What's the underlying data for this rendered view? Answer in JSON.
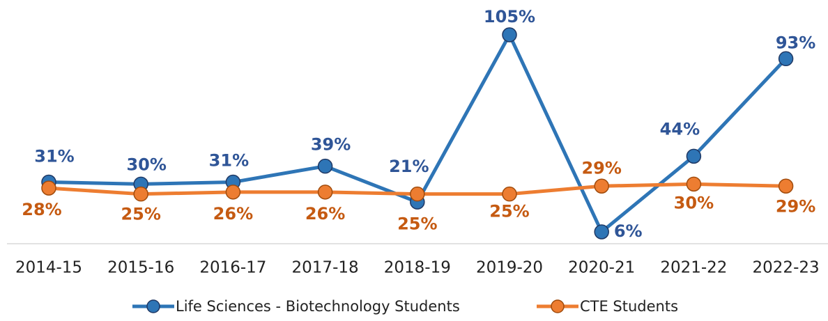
{
  "chart_data": {
    "type": "line",
    "categories": [
      "2014-15",
      "2015-16",
      "2016-17",
      "2017-18",
      "2018-19",
      "2019-20",
      "2020-21",
      "2021-22",
      "2022-23"
    ],
    "series": [
      {
        "name": "Life Sciences - Biotechnology Students",
        "color": "#2e75b6",
        "label_color": "#2f5597",
        "values": [
          31,
          30,
          31,
          39,
          21,
          105,
          6,
          44,
          93
        ],
        "value_labels": [
          "31%",
          "30%",
          "31%",
          "39%",
          "21%",
          "105%",
          "6%",
          "44%",
          "93%"
        ]
      },
      {
        "name": "CTE Students",
        "color": "#ed7d31",
        "label_color": "#c55a11",
        "values": [
          28,
          25,
          26,
          26,
          25,
          25,
          29,
          30,
          29
        ],
        "value_labels": [
          "28%",
          "25%",
          "26%",
          "26%",
          "25%",
          "25%",
          "29%",
          "30%",
          "29%"
        ]
      }
    ],
    "legend": "bottom"
  }
}
